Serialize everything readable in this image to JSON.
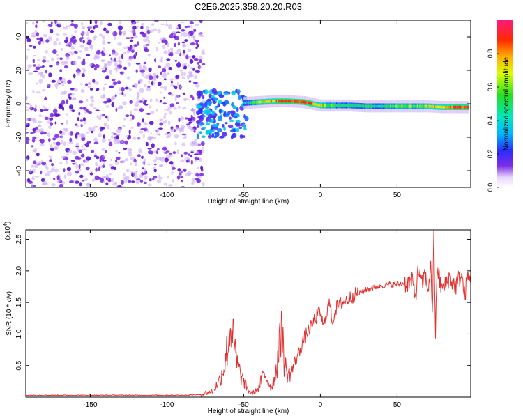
{
  "title": "C2E6.2025.358.20.20.R03",
  "colors": {
    "psd_low": "#c9a6f4",
    "psd_mid": "#7d2ee0",
    "psd_high": "#5a0fd0",
    "snr_line": "#e23030"
  },
  "colorbar": {
    "label": "Normalized spectral amplitude",
    "ticks": [
      "0.0",
      "0.2",
      "0.4",
      "0.6",
      "0.8"
    ],
    "tick_values": [
      0.0,
      0.2,
      0.4,
      0.6,
      0.8
    ],
    "range": [
      0,
      1
    ]
  },
  "chart_data": [
    {
      "type": "heatmap",
      "name": "spectrogram",
      "xlabel": "Height of straight line (km)",
      "ylabel": "Frequency (Hz)",
      "xlim": [
        -192,
        98
      ],
      "ylim": [
        -50,
        50
      ],
      "xticks": [
        -150,
        -100,
        -50,
        0,
        50
      ],
      "xtick_labels": [
        "-150",
        "-100",
        "-50",
        "0",
        "50"
      ],
      "yticks": [
        -40,
        -20,
        0,
        20,
        40
      ],
      "ytick_labels": [
        "-40",
        "-20",
        "0",
        "20",
        "40"
      ],
      "noise_region": {
        "x_start": -192,
        "x_end": -76,
        "freq_range": [
          -50,
          50
        ],
        "amplitude": 0.12
      },
      "transition_region": {
        "x_start": -80,
        "x_end": -48,
        "freq_range": [
          -20,
          8
        ],
        "amplitude": 0.3
      },
      "signal_band": [
        {
          "x": -50,
          "center": 0.5,
          "amplitude": 0.35
        },
        {
          "x": -40,
          "center": 1.0,
          "amplitude": 0.6
        },
        {
          "x": -30,
          "center": 1.5,
          "amplitude": 0.8
        },
        {
          "x": -20,
          "center": 1.5,
          "amplitude": 0.85
        },
        {
          "x": -10,
          "center": 1.0,
          "amplitude": 0.9
        },
        {
          "x": 0,
          "center": -1.0,
          "amplitude": 0.7
        },
        {
          "x": 10,
          "center": -1.0,
          "amplitude": 0.5
        },
        {
          "x": 20,
          "center": -1.0,
          "amplitude": 0.45
        },
        {
          "x": 30,
          "center": -1.5,
          "amplitude": 0.45
        },
        {
          "x": 40,
          "center": -1.5,
          "amplitude": 0.5
        },
        {
          "x": 50,
          "center": -1.5,
          "amplitude": 0.55
        },
        {
          "x": 60,
          "center": -1.5,
          "amplitude": 0.6
        },
        {
          "x": 70,
          "center": -1.5,
          "amplitude": 0.65
        },
        {
          "x": 80,
          "center": -2.0,
          "amplitude": 0.8
        },
        {
          "x": 90,
          "center": -2.0,
          "amplitude": 0.9
        },
        {
          "x": 97,
          "center": -2.0,
          "amplitude": 0.85
        }
      ]
    },
    {
      "type": "line",
      "name": "snr",
      "xlabel": "Height of straight line (km)",
      "ylabel": "SNR (10 * v/v)",
      "scale_label": "(x10",
      "scale_exponent": "4",
      "xlim": [
        -192,
        98
      ],
      "ylim": [
        0,
        2.65
      ],
      "xticks": [
        -150,
        -100,
        -50,
        0,
        50
      ],
      "xtick_labels": [
        "-150",
        "-100",
        "-50",
        "0",
        "50"
      ],
      "yticks": [
        0.5,
        1.0,
        1.5,
        2.0,
        2.5
      ],
      "ytick_labels": [
        "0.5",
        "1.0",
        "1.5",
        "2.0",
        "2.5"
      ],
      "series": [
        {
          "name": "SNR",
          "x": [
            -192,
            -170,
            -150,
            -130,
            -110,
            -90,
            -78,
            -70,
            -66,
            -62,
            -60,
            -58,
            -56,
            -54,
            -52,
            -50,
            -48,
            -46,
            -44,
            -42,
            -40,
            -38,
            -36,
            -34,
            -32,
            -30,
            -28,
            -26,
            -25,
            -24,
            -22,
            -20,
            -18,
            -16,
            -14,
            -12,
            -10,
            -8,
            -6,
            -4,
            -2,
            0,
            2,
            4,
            6,
            8,
            10,
            14,
            18,
            22,
            26,
            30,
            35,
            40,
            45,
            50,
            55,
            60,
            62,
            64,
            66,
            68,
            70,
            72,
            73,
            74,
            75,
            76,
            78,
            80,
            84,
            88,
            92,
            94,
            96,
            98
          ],
          "y": [
            0.03,
            0.03,
            0.03,
            0.03,
            0.03,
            0.03,
            0.04,
            0.1,
            0.25,
            0.55,
            0.9,
            1.2,
            0.75,
            0.5,
            0.35,
            0.25,
            0.15,
            0.08,
            0.06,
            0.1,
            0.15,
            0.3,
            0.35,
            0.25,
            0.15,
            0.3,
            0.55,
            0.9,
            1.45,
            0.6,
            0.4,
            0.35,
            0.45,
            0.6,
            0.7,
            0.85,
            0.95,
            1.05,
            1.1,
            1.2,
            1.3,
            1.35,
            1.1,
            1.35,
            1.5,
            1.2,
            1.4,
            1.5,
            1.55,
            1.62,
            1.66,
            1.7,
            1.74,
            1.77,
            1.78,
            1.79,
            1.8,
            1.82,
            1.6,
            2.05,
            1.75,
            1.95,
            1.7,
            2.05,
            1.4,
            2.55,
            0.9,
            2.1,
            1.8,
            1.7,
            1.9,
            1.75,
            1.95,
            1.6,
            1.9,
            1.85
          ]
        }
      ]
    }
  ]
}
